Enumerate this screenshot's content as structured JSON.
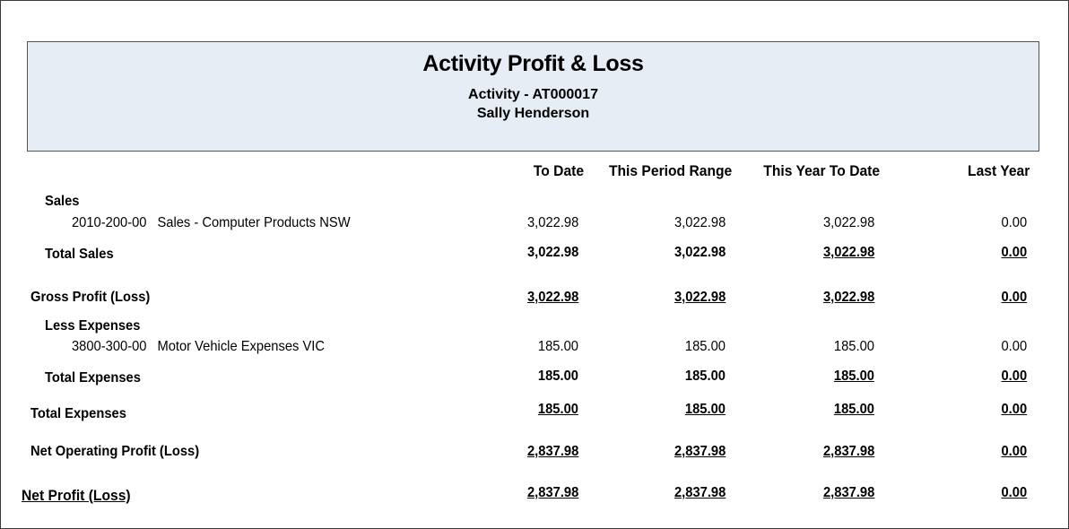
{
  "report": {
    "title": "Activity Profit & Loss",
    "activity": "Activity - AT000017",
    "name": "Sally Henderson"
  },
  "columns": [
    "To Date",
    "This Period Range",
    "This Year To Date",
    "Last Year"
  ],
  "rows": {
    "sales_heading": "Sales",
    "sales_item": {
      "account": "2010-200-00",
      "name": "Sales - Computer Products NSW",
      "values": [
        "3,022.98",
        "3,022.98",
        "3,022.98",
        "0.00"
      ]
    },
    "total_sales": {
      "label": "Total Sales",
      "values": [
        "3,022.98",
        "3,022.98",
        "3,022.98",
        "0.00"
      ]
    },
    "gross_profit": {
      "label": "Gross Profit (Loss)",
      "values": [
        "3,022.98",
        "3,022.98",
        "3,022.98",
        "0.00"
      ]
    },
    "less_expenses_heading": "Less Expenses",
    "expense_item": {
      "account": "3800-300-00",
      "name": "Motor Vehicle Expenses VIC",
      "values": [
        "185.00",
        "185.00",
        "185.00",
        "0.00"
      ]
    },
    "total_expenses_inner": {
      "label": "Total Expenses",
      "values": [
        "185.00",
        "185.00",
        "185.00",
        "0.00"
      ]
    },
    "total_expenses": {
      "label": "Total Expenses",
      "values": [
        "185.00",
        "185.00",
        "185.00",
        "0.00"
      ]
    },
    "net_operating": {
      "label": "Net Operating Profit (Loss)",
      "values": [
        "2,837.98",
        "2,837.98",
        "2,837.98",
        "0.00"
      ]
    },
    "net_profit": {
      "label": "Net Profit (Loss)",
      "values": [
        "2,837.98",
        "2,837.98",
        "2,837.98",
        "0.00"
      ]
    }
  }
}
